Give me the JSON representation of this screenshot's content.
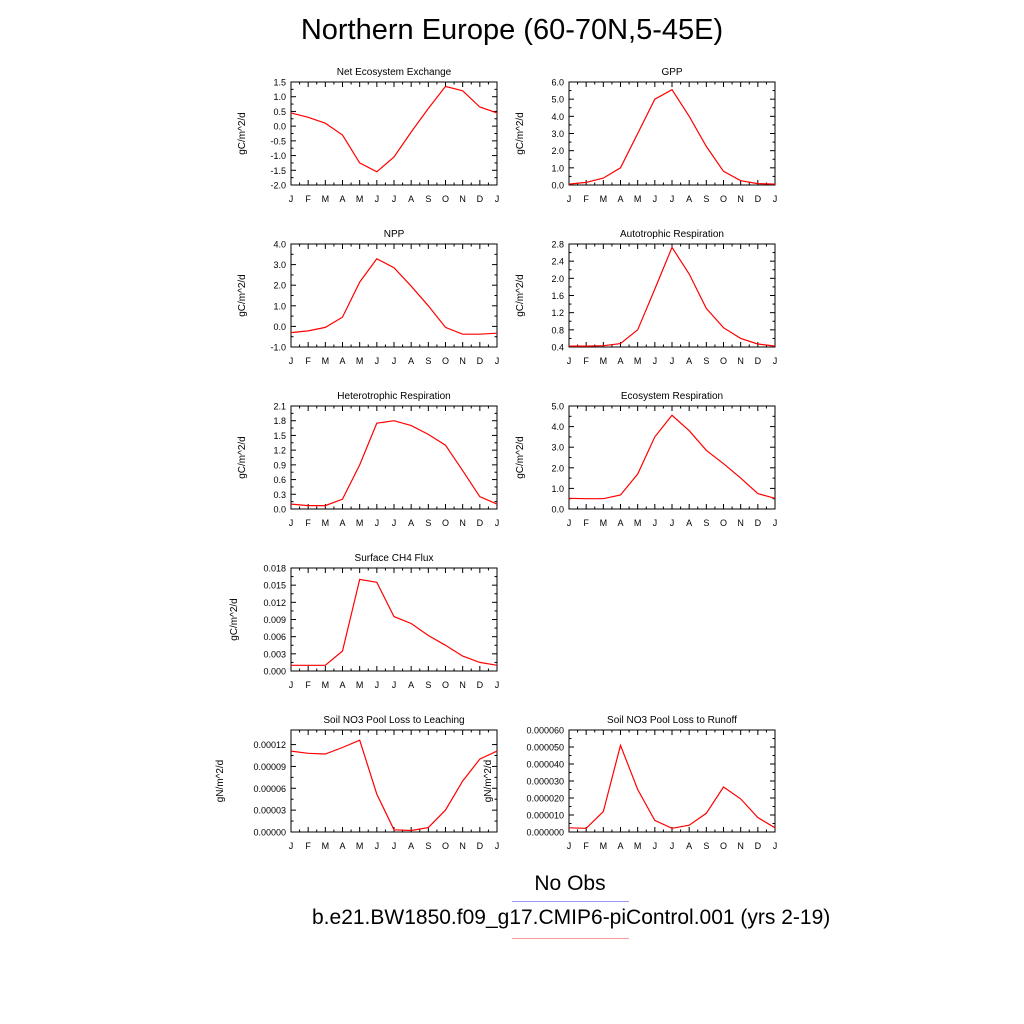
{
  "figure": {
    "title": "Northern Europe (60-70N,5-45E)",
    "line_color": "#ff0000",
    "legend": [
      {
        "label": "No Obs",
        "color": "#9999ff"
      },
      {
        "label": "b.e21.BW1850.f09_g17.CMIP6-piControl.001 (yrs 2-19)",
        "color": "#ff9999"
      }
    ]
  },
  "chart_data": [
    {
      "type": "line",
      "title": "Net Ecosystem Exchange",
      "ylabel": "gC/m^2/d",
      "x": [
        "J",
        "F",
        "M",
        "A",
        "M",
        "J",
        "J",
        "A",
        "S",
        "O",
        "N",
        "D",
        "J"
      ],
      "values": [
        0.45,
        0.3,
        0.1,
        -0.3,
        -1.25,
        -1.55,
        -1.05,
        -0.2,
        0.6,
        1.35,
        1.2,
        0.65,
        0.45
      ],
      "ylim": [
        -2.0,
        1.5
      ],
      "yticks": [
        "-2.0",
        "-1.5",
        "-1.0",
        "-0.5",
        "0.0",
        "0.5",
        "1.0",
        "1.5"
      ]
    },
    {
      "type": "line",
      "title": "GPP",
      "ylabel": "gC/m^2/d",
      "x": [
        "J",
        "F",
        "M",
        "A",
        "M",
        "J",
        "J",
        "A",
        "S",
        "O",
        "N",
        "D",
        "J"
      ],
      "values": [
        0.05,
        0.15,
        0.4,
        1.0,
        3.0,
        5.0,
        5.55,
        4.0,
        2.25,
        0.8,
        0.25,
        0.08,
        0.05
      ],
      "ylim": [
        0.0,
        6.0
      ],
      "yticks": [
        "0.0",
        "1.0",
        "2.0",
        "3.0",
        "4.0",
        "5.0",
        "6.0"
      ]
    },
    {
      "type": "line",
      "title": "NPP",
      "ylabel": "gC/m^2/d",
      "x": [
        "J",
        "F",
        "M",
        "A",
        "M",
        "J",
        "J",
        "A",
        "S",
        "O",
        "N",
        "D",
        "J"
      ],
      "values": [
        -0.3,
        -0.22,
        -0.05,
        0.45,
        2.15,
        3.28,
        2.85,
        1.95,
        1.0,
        -0.05,
        -0.38,
        -0.38,
        -0.33
      ],
      "ylim": [
        -1.0,
        4.0
      ],
      "yticks": [
        "-1.0",
        "0.0",
        "1.0",
        "2.0",
        "3.0",
        "4.0"
      ]
    },
    {
      "type": "line",
      "title": "Autotrophic Respiration",
      "ylabel": "gC/m^2/d",
      "x": [
        "J",
        "F",
        "M",
        "A",
        "M",
        "J",
        "J",
        "A",
        "S",
        "O",
        "N",
        "D",
        "J"
      ],
      "values": [
        0.42,
        0.42,
        0.43,
        0.48,
        0.8,
        1.75,
        2.72,
        2.1,
        1.3,
        0.85,
        0.6,
        0.47,
        0.42
      ],
      "ylim": [
        0.4,
        2.8
      ],
      "yticks": [
        "0.4",
        "0.8",
        "1.2",
        "1.6",
        "2.0",
        "2.4",
        "2.8"
      ]
    },
    {
      "type": "line",
      "title": "Heterotrophic Respiration",
      "ylabel": "gC/m^2/d",
      "x": [
        "J",
        "F",
        "M",
        "A",
        "M",
        "J",
        "J",
        "A",
        "S",
        "O",
        "N",
        "D",
        "J"
      ],
      "values": [
        0.1,
        0.07,
        0.07,
        0.2,
        0.9,
        1.75,
        1.8,
        1.7,
        1.52,
        1.3,
        0.78,
        0.25,
        0.1
      ],
      "ylim": [
        0.0,
        2.1
      ],
      "yticks": [
        "0.0",
        "0.3",
        "0.6",
        "0.9",
        "1.2",
        "1.5",
        "1.8",
        "2.1"
      ]
    },
    {
      "type": "line",
      "title": "Ecosystem Respiration",
      "ylabel": "gC/m^2/d",
      "x": [
        "J",
        "F",
        "M",
        "A",
        "M",
        "J",
        "J",
        "A",
        "S",
        "O",
        "N",
        "D",
        "J"
      ],
      "values": [
        0.52,
        0.5,
        0.5,
        0.68,
        1.7,
        3.5,
        4.55,
        3.8,
        2.85,
        2.2,
        1.5,
        0.75,
        0.52
      ],
      "ylim": [
        0.0,
        5.0
      ],
      "yticks": [
        "0.0",
        "1.0",
        "2.0",
        "3.0",
        "4.0",
        "5.0"
      ]
    },
    {
      "type": "line",
      "title": "Surface CH4 Flux",
      "ylabel": "gC/m^2/d",
      "x": [
        "J",
        "F",
        "M",
        "A",
        "M",
        "J",
        "J",
        "A",
        "S",
        "O",
        "N",
        "D",
        "J"
      ],
      "values": [
        0.001,
        0.001,
        0.001,
        0.0035,
        0.016,
        0.0155,
        0.0095,
        0.0083,
        0.0062,
        0.0045,
        0.0026,
        0.0015,
        0.001
      ],
      "ylim": [
        0.0,
        0.018
      ],
      "yticks": [
        "0.000",
        "0.003",
        "0.006",
        "0.009",
        "0.012",
        "0.015",
        "0.018"
      ]
    },
    {
      "type": "line",
      "title": "Soil NO3 Pool Loss to Leaching",
      "ylabel": "gN/m^2/d",
      "x": [
        "J",
        "F",
        "M",
        "A",
        "M",
        "J",
        "J",
        "A",
        "S",
        "O",
        "N",
        "D",
        "J"
      ],
      "values": [
        0.000111,
        0.000108,
        0.000107,
        0.000116,
        0.000126,
        5.2e-05,
        3e-06,
        2e-06,
        6e-06,
        3e-05,
        7e-05,
        0.0001,
        0.000111
      ],
      "ylim": [
        0.0,
        0.00014
      ],
      "yticks": [
        "0.00000",
        "0.00003",
        "0.00006",
        "0.00009",
        "0.00012"
      ],
      "ytick_values": [
        0.0,
        3e-05,
        6e-05,
        9e-05,
        0.00012
      ]
    },
    {
      "type": "line",
      "title": "Soil NO3 Pool Loss to Runoff",
      "ylabel": "gN/m^2/d",
      "x": [
        "J",
        "F",
        "M",
        "A",
        "M",
        "J",
        "J",
        "A",
        "S",
        "O",
        "N",
        "D",
        "J"
      ],
      "values": [
        2.5e-06,
        2.2e-06,
        1.2e-05,
        5.1e-05,
        2.5e-05,
        6.8e-06,
        2.2e-06,
        4e-06,
        1.1e-05,
        2.65e-05,
        1.95e-05,
        8.5e-06,
        2.5e-06
      ],
      "ylim": [
        0.0,
        6e-05
      ],
      "yticks": [
        "0.000000",
        "0.000010",
        "0.000020",
        "0.000030",
        "0.000040",
        "0.000050",
        "0.000060"
      ]
    }
  ]
}
